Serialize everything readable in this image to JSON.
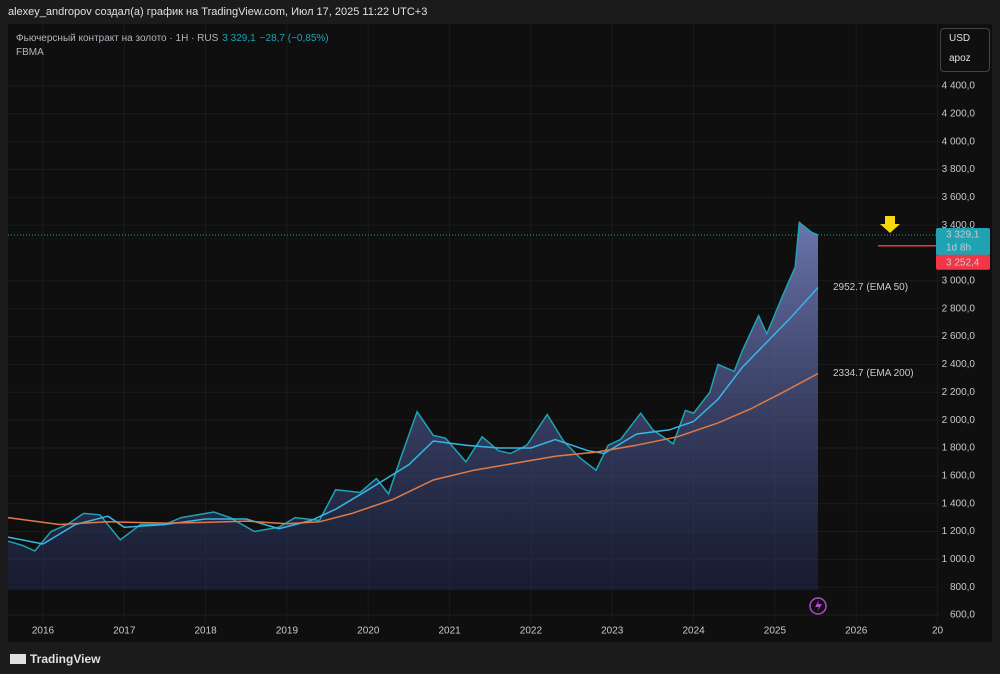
{
  "header": {
    "author_line": "alexey_andropov создал(а) график на TradingView.com, Июл 17, 2025 11:22 UTC+3"
  },
  "chart_data": {
    "type": "line",
    "title": "Фьючерсный контракт на золото · 1H · RUS",
    "last_value": 3329.1,
    "last_value_label": "3 329,1",
    "change_label": "−28,7 (−0,85%)",
    "indicator": "FBMA",
    "currency": "USD",
    "scale_button": "apoz",
    "countdown": "1d 8h",
    "marker": {
      "value": 3252.4,
      "label": "3 252,4",
      "color": "#f23645"
    },
    "xlim": [
      2015.57,
      2027.03
    ],
    "xticks": [
      2016,
      2017,
      2018,
      2019,
      2020,
      2021,
      2022,
      2023,
      2024,
      2025,
      2026,
      {
        "value": 2027,
        "label": "20"
      }
    ],
    "ylim": [
      550,
      4845
    ],
    "yticks": [
      {
        "value": 600,
        "label": "600,0"
      },
      {
        "value": 800,
        "label": "800,0"
      },
      {
        "value": 1000,
        "label": "1 000,0"
      },
      {
        "value": 1200,
        "label": "1 200,0"
      },
      {
        "value": 1400,
        "label": "1 400,0"
      },
      {
        "value": 1600,
        "label": "1 600,0"
      },
      {
        "value": 1800,
        "label": "1 800,0"
      },
      {
        "value": 2000,
        "label": "2 000,0"
      },
      {
        "value": 2200,
        "label": "2 200,0"
      },
      {
        "value": 2400,
        "label": "2 400,0"
      },
      {
        "value": 2600,
        "label": "2 600,0"
      },
      {
        "value": 2800,
        "label": "2 800,0"
      },
      {
        "value": 3000,
        "label": "3 000,0"
      },
      {
        "value": 3400,
        "label": "3 400,0"
      },
      {
        "value": 3600,
        "label": "3 600,0"
      },
      {
        "value": 3800,
        "label": "3 800,0"
      },
      {
        "value": 4000,
        "label": "4 000,0"
      },
      {
        "value": 4200,
        "label": "4 200,0"
      },
      {
        "value": 4400,
        "label": "4 400,0"
      }
    ],
    "grid": true,
    "series": [
      {
        "color": "#1fa3b3",
        "area": true,
        "x": [
          2015.57,
          2015.75,
          2015.9,
          2016.1,
          2016.3,
          2016.5,
          2016.7,
          2016.95,
          2017.2,
          2017.5,
          2017.7,
          2018.1,
          2018.3,
          2018.6,
          2018.9,
          2019.1,
          2019.4,
          2019.6,
          2019.9,
          2020.1,
          2020.25,
          2020.4,
          2020.6,
          2020.8,
          2020.95,
          2021.2,
          2021.4,
          2021.6,
          2021.75,
          2021.95,
          2022.2,
          2022.4,
          2022.6,
          2022.8,
          2022.95,
          2023.1,
          2023.35,
          2023.5,
          2023.75,
          2023.9,
          2024.0,
          2024.2,
          2024.3,
          2024.5,
          2024.6,
          2024.8,
          2024.9,
          2025.1,
          2025.25,
          2025.3,
          2025.45,
          2025.53
        ],
        "values": [
          1130,
          1100,
          1060,
          1200,
          1250,
          1330,
          1320,
          1140,
          1250,
          1250,
          1300,
          1340,
          1300,
          1200,
          1230,
          1300,
          1280,
          1500,
          1480,
          1580,
          1470,
          1730,
          2060,
          1890,
          1870,
          1700,
          1880,
          1780,
          1760,
          1820,
          2040,
          1850,
          1730,
          1640,
          1820,
          1860,
          2050,
          1930,
          1830,
          2070,
          2050,
          2200,
          2400,
          2350,
          2500,
          2750,
          2620,
          2900,
          3100,
          3420,
          3350,
          3329.1
        ]
      },
      {
        "color": "#38b6e8",
        "end_label": "2952.7 (EMA 50)",
        "x": [
          2015.57,
          2016.0,
          2016.4,
          2016.8,
          2017.0,
          2017.5,
          2018.0,
          2018.5,
          2018.9,
          2019.3,
          2019.6,
          2020.0,
          2020.5,
          2020.8,
          2021.2,
          2021.6,
          2022.0,
          2022.3,
          2022.7,
          2022.9,
          2023.3,
          2023.7,
          2024.0,
          2024.3,
          2024.6,
          2024.9,
          2025.2,
          2025.53
        ],
        "values": [
          1160,
          1110,
          1250,
          1310,
          1230,
          1250,
          1290,
          1290,
          1220,
          1280,
          1360,
          1500,
          1680,
          1850,
          1820,
          1800,
          1800,
          1860,
          1780,
          1760,
          1900,
          1930,
          1990,
          2150,
          2380,
          2560,
          2740,
          2952.7
        ]
      },
      {
        "color": "#e07b48",
        "end_label": "2334.7 (EMA 200)",
        "end_label_color": "#f23645",
        "x": [
          2015.57,
          2016.2,
          2016.8,
          2017.5,
          2018.0,
          2018.5,
          2019.0,
          2019.4,
          2019.8,
          2020.3,
          2020.8,
          2021.3,
          2021.8,
          2022.3,
          2022.8,
          2023.3,
          2023.8,
          2024.3,
          2024.7,
          2025.1,
          2025.53
        ],
        "values": [
          1300,
          1250,
          1270,
          1260,
          1265,
          1275,
          1255,
          1270,
          1330,
          1430,
          1570,
          1640,
          1690,
          1740,
          1770,
          1820,
          1880,
          1980,
          2080,
          2200,
          2334.7
        ]
      }
    ]
  },
  "footer": {
    "brand": "TradingView"
  }
}
